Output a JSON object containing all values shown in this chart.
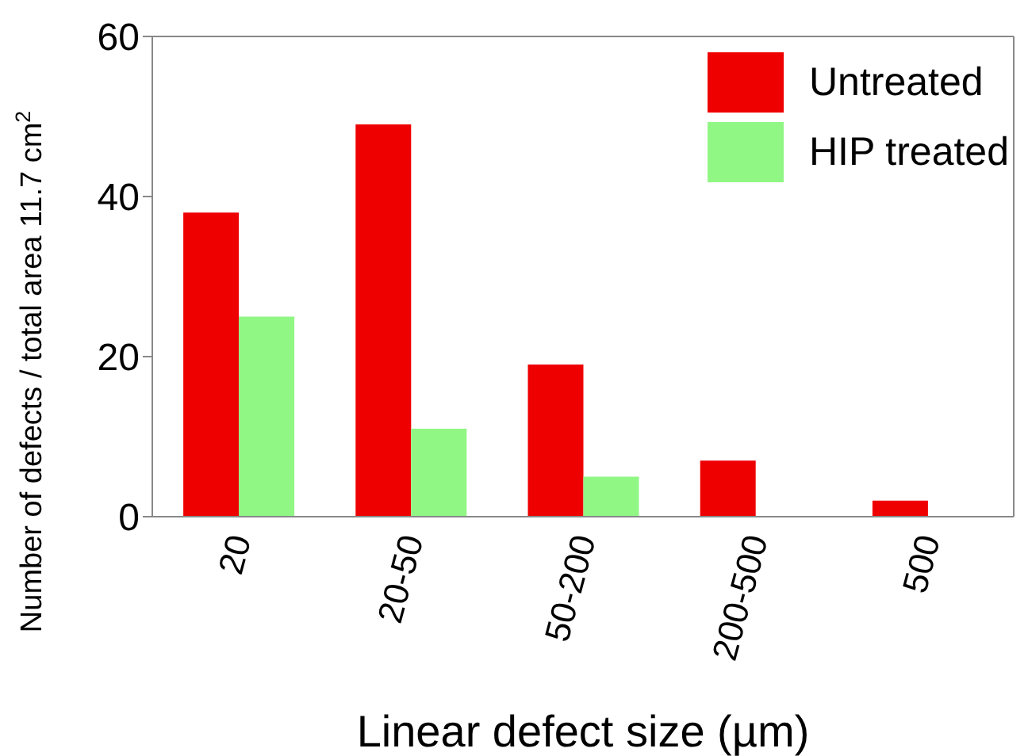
{
  "chart_data": {
    "type": "bar",
    "xlabel": "Linear defect size (µm)",
    "ylabel": "Number of defects / total area 11.7 cm$^{2}$",
    "categories": [
      "20",
      "20-50",
      "50-200",
      "200-500",
      "500"
    ],
    "series": [
      {
        "name": "Untreated",
        "color": "#ee0000",
        "values": [
          38,
          49,
          19,
          7,
          2
        ]
      },
      {
        "name": "HIP treated",
        "color": "#90f785",
        "values": [
          25,
          11,
          5,
          0,
          0
        ]
      }
    ],
    "ylim": [
      0,
      60
    ],
    "yticks": [
      0,
      20,
      40,
      60
    ],
    "grid": false,
    "legend": "top right"
  }
}
